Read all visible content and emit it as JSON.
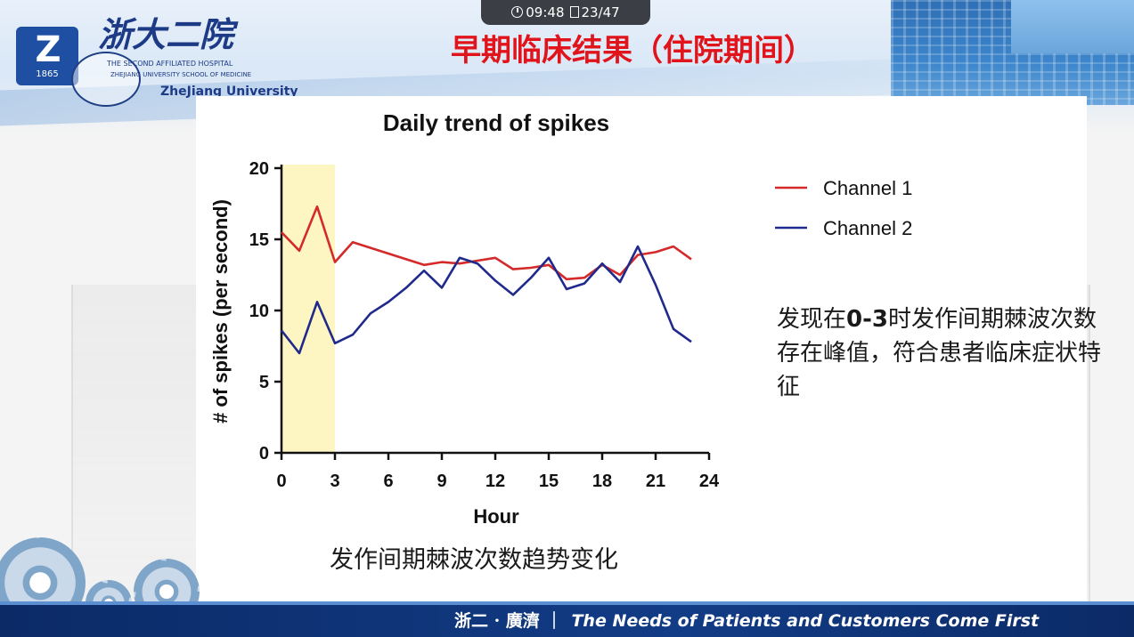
{
  "status_bar": {
    "time": "09:48",
    "page": "23/47"
  },
  "header": {
    "logo_mark": "Z",
    "logo_year": "1865",
    "logo_cn": "浙大二院",
    "logo_en_line1": "THE SECOND AFFILIATED HOSPITAL",
    "logo_en_line2": "ZHEJIANG UNIVERSITY SCHOOL OF MEDICINE",
    "logo_en_line3": "ZheJiang University",
    "slide_title": "早期临床结果（住院期间）"
  },
  "annotation": {
    "prefix": "发现在",
    "bold": "0-3",
    "suffix": "时发作间期棘波次数存在峰值，符合患者临床症状特征"
  },
  "caption": "发作间期棘波次数趋势变化",
  "footer": {
    "cn": "浙二 · 廣濟 ｜",
    "en": "The Needs of Patients and Customers Come First"
  },
  "colors": {
    "channel1": "#d42a2a",
    "channel2": "#1f2a8c",
    "highlight": "#fdf6c3",
    "title_red": "#e0141a"
  },
  "icons": [
    "clock-icon",
    "page-icon",
    "gear-icon"
  ],
  "chart_data": {
    "type": "line",
    "title": "Daily trend of spikes",
    "xlabel": "Hour",
    "ylabel": "# of spikes (per second)",
    "xlim": [
      0,
      24
    ],
    "ylim": [
      0,
      20
    ],
    "xticks": [
      0,
      3,
      6,
      9,
      12,
      15,
      18,
      21,
      24
    ],
    "yticks": [
      0,
      5,
      10,
      15,
      20
    ],
    "grid": false,
    "legend_position": "right",
    "highlight_region": [
      0,
      3
    ],
    "series": [
      {
        "name": "Channel 1",
        "x": [
          0,
          1,
          2,
          3,
          4,
          5,
          6,
          7,
          8,
          9,
          10,
          11,
          12,
          13,
          14,
          15,
          16,
          17,
          18,
          19,
          20,
          21,
          22,
          23
        ],
        "values": [
          15.5,
          14.2,
          17.3,
          13.4,
          14.8,
          14.4,
          14.0,
          13.6,
          13.2,
          13.4,
          13.3,
          13.5,
          13.7,
          12.9,
          13.0,
          13.2,
          12.2,
          12.3,
          13.2,
          12.5,
          13.9,
          14.1,
          14.5,
          13.6
        ]
      },
      {
        "name": "Channel 2",
        "x": [
          0,
          1,
          2,
          3,
          4,
          5,
          6,
          7,
          8,
          9,
          10,
          11,
          12,
          13,
          14,
          15,
          16,
          17,
          18,
          19,
          20,
          21,
          22,
          23
        ],
        "values": [
          8.6,
          7.0,
          10.6,
          7.7,
          8.3,
          9.8,
          10.6,
          11.6,
          12.8,
          11.6,
          13.7,
          13.3,
          12.1,
          11.1,
          12.3,
          13.7,
          11.5,
          11.9,
          13.3,
          12.0,
          14.5,
          11.8,
          8.7,
          7.8
        ]
      }
    ]
  }
}
